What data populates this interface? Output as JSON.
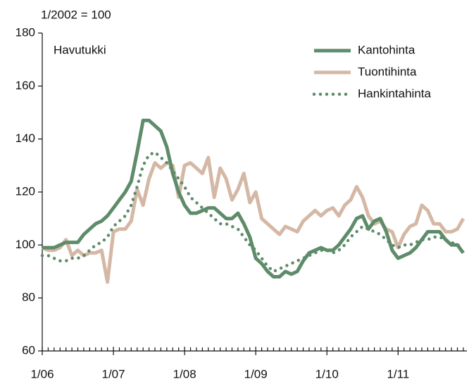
{
  "chart_data": {
    "type": "line",
    "y_label": "1/2002 = 100",
    "annotation": "Havutukki",
    "categories": [
      "1/06",
      null,
      null,
      null,
      null,
      null,
      null,
      null,
      null,
      null,
      null,
      null,
      "1/07",
      null,
      null,
      null,
      null,
      null,
      null,
      null,
      null,
      null,
      null,
      null,
      "1/08",
      null,
      null,
      null,
      null,
      null,
      null,
      null,
      null,
      null,
      null,
      null,
      "1/09",
      null,
      null,
      null,
      null,
      null,
      null,
      null,
      null,
      null,
      null,
      null,
      "1/10",
      null,
      null,
      null,
      null,
      null,
      null,
      null,
      null,
      null,
      null,
      null,
      "1/11",
      null,
      null,
      null,
      null,
      null,
      null,
      null,
      null,
      null,
      null,
      null
    ],
    "series": [
      {
        "name": "Kantohinta",
        "color": "#5e8c6a",
        "style": "solid",
        "values": [
          99,
          99,
          99,
          100,
          101,
          101,
          101,
          104,
          106,
          108,
          109,
          111,
          114,
          117,
          120,
          124,
          135,
          147,
          147,
          145,
          143,
          137,
          127,
          120,
          115,
          112,
          112,
          113,
          114,
          114,
          112,
          110,
          110,
          112,
          108,
          103,
          95,
          93,
          90,
          88,
          88,
          90,
          89,
          90,
          94,
          97,
          98,
          99,
          98,
          98,
          100,
          103,
          106,
          110,
          111,
          106,
          109,
          110,
          105,
          98,
          95,
          96,
          97,
          99,
          102,
          105,
          105,
          105,
          102,
          100,
          100,
          97
        ]
      },
      {
        "name": "Tuontihinta",
        "color": "#d4b8a5",
        "style": "solid",
        "values": [
          99,
          98,
          98,
          99,
          102,
          96,
          98,
          96,
          97,
          97,
          98,
          86,
          105,
          106,
          106,
          109,
          121,
          115,
          125,
          131,
          129,
          131,
          130,
          118,
          130,
          131,
          129,
          127,
          133,
          118,
          129,
          125,
          117,
          121,
          127,
          116,
          120,
          110,
          108,
          106,
          104,
          107,
          106,
          105,
          109,
          111,
          113,
          111,
          113,
          114,
          111,
          115,
          117,
          122,
          118,
          111,
          108,
          109,
          106,
          105,
          99,
          104,
          107,
          108,
          115,
          113,
          108,
          108,
          105,
          105,
          106,
          110
        ]
      },
      {
        "name": "Hankintahinta",
        "color": "#5e8c6a",
        "style": "dotted",
        "values": [
          96,
          96,
          95,
          94,
          94,
          95,
          95,
          96,
          98,
          100,
          101,
          103,
          107,
          109,
          111,
          115,
          122,
          130,
          134,
          135,
          133,
          131,
          128,
          125,
          122,
          118,
          116,
          114,
          112,
          110,
          108,
          108,
          107,
          106,
          103,
          100,
          98,
          95,
          92,
          90,
          91,
          92,
          93,
          94,
          95,
          96,
          97,
          98,
          98,
          97,
          98,
          100,
          103,
          105,
          107,
          106,
          105,
          104,
          102,
          100,
          99,
          100,
          100,
          101,
          102,
          102,
          103,
          103,
          102,
          101,
          100,
          99
        ]
      }
    ],
    "ylim": [
      60,
      180
    ],
    "yticks": [
      60,
      80,
      100,
      120,
      140,
      160,
      180
    ],
    "grid": false,
    "legend": "top-right"
  }
}
